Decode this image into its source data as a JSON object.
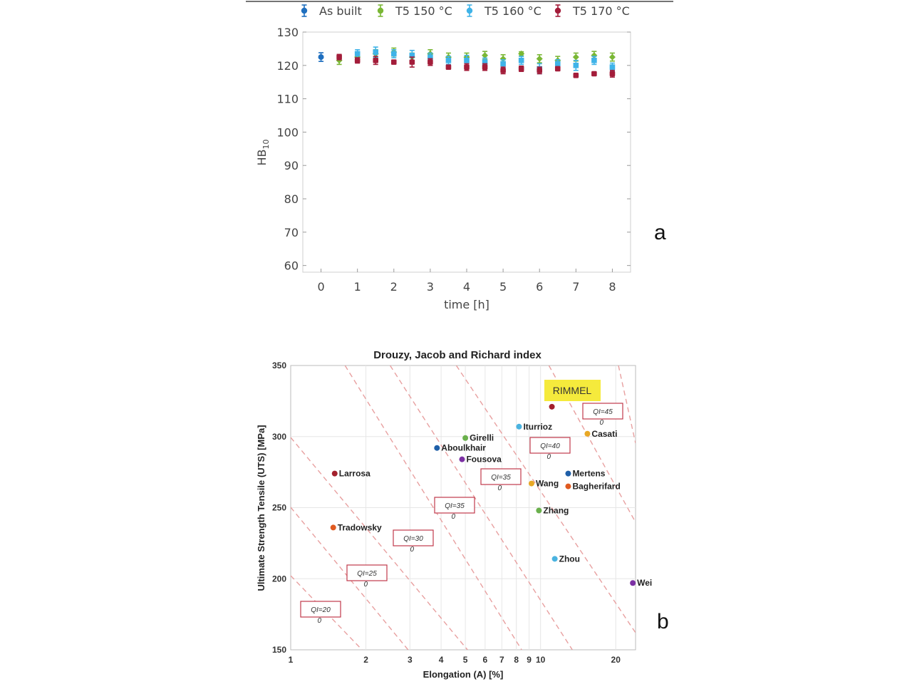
{
  "chart_data": [
    {
      "type": "scatter",
      "panel_label": "a",
      "xlabel": "time [h]",
      "ylabel": "HB",
      "ylabel_sub": "10",
      "xlim": [
        -0.5,
        8.5
      ],
      "ylim": [
        58,
        130
      ],
      "xticks": [
        0,
        1,
        2,
        3,
        4,
        5,
        6,
        7,
        8
      ],
      "yticks": [
        60,
        70,
        80,
        90,
        100,
        110,
        120,
        130
      ],
      "grid": false,
      "legend_position": "top",
      "series": [
        {
          "name": "As built",
          "color": "#1f6fbf",
          "x": [
            0
          ],
          "y": [
            122.5
          ],
          "err": [
            1.3
          ]
        },
        {
          "name": "T5 150 °C",
          "color": "#7ab735",
          "x": [
            0.5,
            1,
            1.5,
            2,
            2.5,
            3,
            3.5,
            4,
            4.5,
            5,
            5.5,
            6,
            6.5,
            7,
            7.5,
            8
          ],
          "y": [
            121.5,
            122.5,
            123.5,
            124,
            122.5,
            123.5,
            122.5,
            122.5,
            123,
            122,
            123.5,
            122,
            121.5,
            122.5,
            123,
            122.5
          ],
          "err": [
            1.2,
            1.2,
            1.2,
            1.2,
            1.2,
            1.2,
            1.2,
            1.2,
            1.2,
            1.2,
            0.6,
            1.2,
            1.2,
            1.2,
            1.2,
            1.2
          ]
        },
        {
          "name": "T5 160 °C",
          "color": "#3fb3e8",
          "x": [
            1,
            1.5,
            2,
            2.5,
            3,
            3.5,
            4,
            4.5,
            5,
            5.5,
            6,
            6.5,
            7,
            7.5,
            8
          ],
          "y": [
            123.5,
            124,
            123.5,
            123,
            122.5,
            121.5,
            121.5,
            121,
            120.5,
            121.5,
            119,
            120.5,
            120,
            121.5,
            119.5
          ],
          "err": [
            1.2,
            1.5,
            1.2,
            1.5,
            1.2,
            1.2,
            1.5,
            1.2,
            1.2,
            1.2,
            1.5,
            1.2,
            1.5,
            1.2,
            1.2
          ]
        },
        {
          "name": "T5 170 °C",
          "color": "#a31d3a",
          "x": [
            0.5,
            1,
            1.5,
            2,
            2.5,
            3,
            3.5,
            4,
            4.5,
            5,
            5.5,
            6,
            6.5,
            7,
            7.5,
            8
          ],
          "y": [
            122.5,
            121.5,
            121.5,
            121,
            121,
            121,
            119.5,
            119.5,
            119.5,
            118.5,
            119,
            118.5,
            119,
            117,
            117.5,
            117.5
          ],
          "err": [
            0.8,
            0.8,
            1.2,
            0.6,
            1.5,
            1.0,
            0.6,
            1.0,
            1.0,
            1.0,
            0.8,
            1.0,
            0.6,
            0.4,
            0.4,
            1.0
          ]
        }
      ]
    },
    {
      "type": "scatter",
      "panel_label": "b",
      "title": "Drouzy, Jacob and Richard index",
      "xlabel": "Elongation (A) [%]",
      "ylabel": "Ultimate Strength Tensile (UTS) [MPa]",
      "x_scale": "log",
      "xlim": [
        1,
        24
      ],
      "ylim": [
        150,
        350
      ],
      "xticks": [
        1,
        2,
        3,
        4,
        5,
        6,
        7,
        8,
        9,
        10,
        20
      ],
      "xticklabels": [
        "1",
        "2",
        "3",
        "4",
        "5",
        "6",
        "7",
        "8",
        "9",
        "10",
        "20"
      ],
      "yticks": [
        150,
        200,
        250,
        300,
        350
      ],
      "grid": true,
      "highlight": {
        "text": "RIMMEL",
        "color": "#f5ea3c"
      },
      "points": [
        {
          "label": "Larrosa",
          "x": 1.5,
          "y": 274,
          "color": "#a3202d"
        },
        {
          "label": "Tradowsky",
          "x": 1.48,
          "y": 236,
          "color": "#e05a20"
        },
        {
          "label": "Aboulkhair",
          "x": 3.85,
          "y": 292,
          "color": "#1f5fa8"
        },
        {
          "label": "Girelli",
          "x": 5.0,
          "y": 299,
          "color": "#6ab04c"
        },
        {
          "label": "Fousova",
          "x": 4.85,
          "y": 284,
          "color": "#7b2fa3"
        },
        {
          "label": "Iturrioz",
          "x": 8.2,
          "y": 307,
          "color": "#4ab3e0"
        },
        {
          "label": "",
          "x": 11.1,
          "y": 321,
          "color": "#a3202d"
        },
        {
          "label": "Casati",
          "x": 15.4,
          "y": 302,
          "color": "#e8a825"
        },
        {
          "label": "Mertens",
          "x": 12.9,
          "y": 274,
          "color": "#1f5fa8"
        },
        {
          "label": "Wang",
          "x": 9.2,
          "y": 267,
          "color": "#e8a825"
        },
        {
          "label": "Bagherifard",
          "x": 12.9,
          "y": 265,
          "color": "#e05a20"
        },
        {
          "label": "Zhang",
          "x": 9.85,
          "y": 248,
          "color": "#6ab04c"
        },
        {
          "label": "Zhou",
          "x": 11.4,
          "y": 214,
          "color": "#4ab3e0"
        },
        {
          "label": "Wei",
          "x": 23.4,
          "y": 197,
          "color": "#7b2fa3"
        }
      ],
      "qi_lines": [
        {
          "label": "QI=20",
          "sub": "0"
        },
        {
          "label": "QI=25",
          "sub": "0"
        },
        {
          "label": "QI=30",
          "sub": "0"
        },
        {
          "label": "QI=35",
          "sub": "0"
        },
        {
          "label": "QI=35",
          "sub": "0"
        },
        {
          "label": "QI=40",
          "sub": "0"
        },
        {
          "label": "QI=45",
          "sub": "0"
        }
      ]
    }
  ]
}
